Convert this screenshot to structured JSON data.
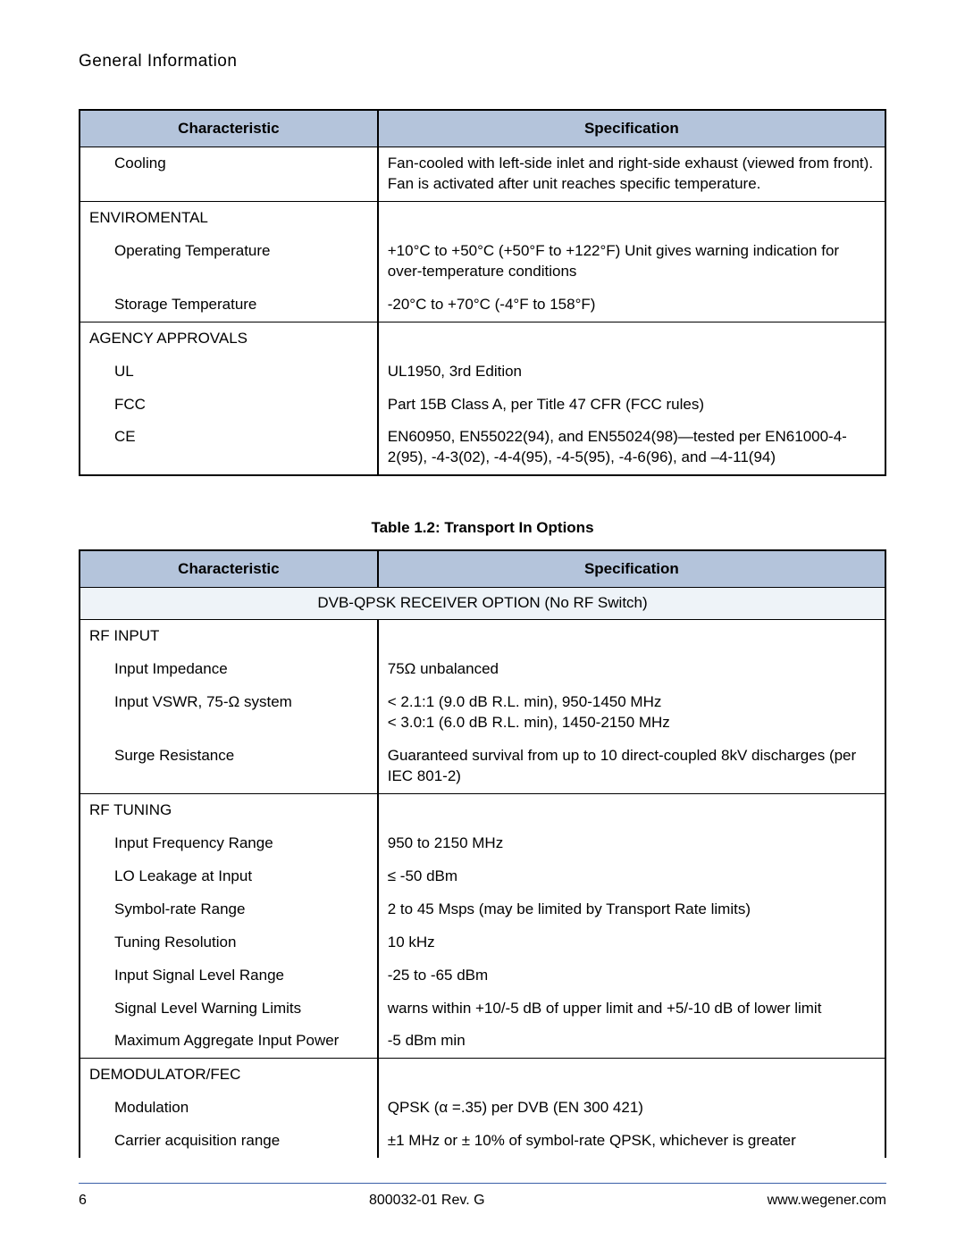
{
  "page": {
    "section_title": "General Information",
    "footer": {
      "page_num": "6",
      "doc_rev": "800032-01 Rev. G",
      "url": "www.wegener.com"
    }
  },
  "colors": {
    "header_bg": "#b4c4db",
    "banner_bg": "#eef3f8",
    "border": "#000000",
    "footer_rule": "#3a5fa8",
    "text": "#000000",
    "page_bg": "#ffffff"
  },
  "typography": {
    "body_font": "Arial, Helvetica, sans-serif",
    "body_size_pt": 12,
    "header_bold": true,
    "caption_bold": true
  },
  "table1": {
    "col_widths_pct": [
      37,
      63
    ],
    "headers": {
      "c": "Characteristic",
      "s": "Specification"
    },
    "rows": [
      {
        "type": "sub",
        "c": "Cooling",
        "s": "Fan-cooled with left-side inlet and right-side exhaust (viewed from front). Fan is activated after unit reaches specific temperature."
      },
      {
        "type": "section",
        "c": "ENVIROMENTAL",
        "s": ""
      },
      {
        "type": "sub",
        "c": "Operating Temperature",
        "s": "+10°C to +50°C (+50°F to +122°F) Unit gives warning indication for over-temperature conditions"
      },
      {
        "type": "sub",
        "c": "Storage Temperature",
        "s": "-20°C to +70°C (-4°F to 158°F)"
      },
      {
        "type": "section",
        "c": "AGENCY APPROVALS",
        "s": ""
      },
      {
        "type": "sub",
        "c": "UL",
        "s": "UL1950, 3rd Edition"
      },
      {
        "type": "sub",
        "c": "FCC",
        "s": "Part 15B Class A, per Title 47 CFR (FCC rules)"
      },
      {
        "type": "sub",
        "c": "CE",
        "s": "EN60950, EN55022(94), and EN55024(98)—tested per EN61000-4-2(95), -4-3(02), -4-4(95), -4-5(95), -4-6(96), and –4-11(94)"
      }
    ]
  },
  "table2": {
    "caption": "Table 1.2: Transport In Options",
    "col_widths_pct": [
      37,
      63
    ],
    "headers": {
      "c": "Characteristic",
      "s": "Specification"
    },
    "banner": "DVB-QPSK RECEIVER OPTION (No RF Switch)",
    "rows": [
      {
        "type": "section",
        "c": "RF INPUT",
        "s": ""
      },
      {
        "type": "sub",
        "c": "Input Impedance",
        "s": "75Ω unbalanced"
      },
      {
        "type": "sub",
        "c": "Input VSWR, 75-Ω system",
        "s": "< 2.1:1 (9.0 dB R.L. min), 950-1450 MHz\n< 3.0:1 (6.0 dB R.L. min), 1450-2150 MHz"
      },
      {
        "type": "sub",
        "c": "Surge Resistance",
        "s": "Guaranteed survival from up to 10 direct-coupled 8kV discharges (per IEC 801-2)"
      },
      {
        "type": "section",
        "c": "RF TUNING",
        "s": ""
      },
      {
        "type": "sub",
        "c": "Input Frequency Range",
        "s": "950 to 2150 MHz"
      },
      {
        "type": "sub",
        "c": "LO Leakage at Input",
        "s": "≤ -50 dBm"
      },
      {
        "type": "sub",
        "c": "Symbol-rate Range",
        "s": "2 to 45 Msps (may be limited by Transport Rate limits)"
      },
      {
        "type": "sub",
        "c": "Tuning Resolution",
        "s": "10 kHz"
      },
      {
        "type": "sub",
        "c": "Input Signal Level Range",
        "s": "-25 to -65 dBm"
      },
      {
        "type": "sub",
        "c": "Signal Level Warning Limits",
        "s": "warns within +10/-5 dB of upper limit and +5/-10 dB of lower limit"
      },
      {
        "type": "sub",
        "c": "Maximum Aggregate Input Power",
        "s": "-5 dBm min"
      },
      {
        "type": "section",
        "c": "DEMODULATOR/FEC",
        "s": ""
      },
      {
        "type": "sub",
        "c": "Modulation",
        "s": "QPSK (α =.35) per DVB (EN 300 421)"
      },
      {
        "type": "sub",
        "c": "Carrier acquisition range",
        "s": "±1 MHz or ± 10% of symbol-rate QPSK, whichever is greater"
      }
    ]
  }
}
